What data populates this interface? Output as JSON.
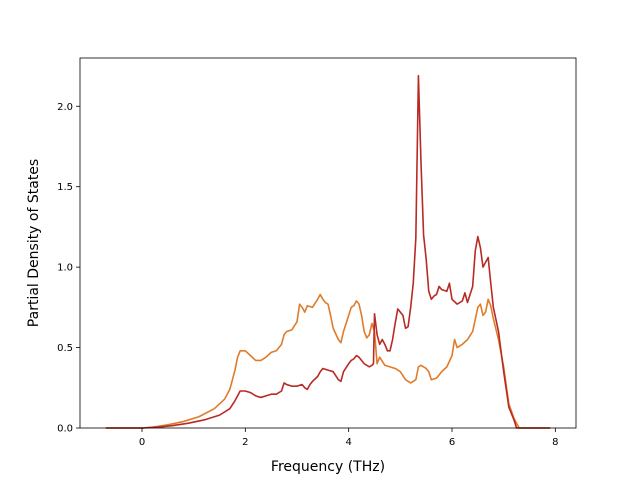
{
  "chart_data": {
    "type": "line",
    "title": "",
    "xlabel": "Frequency (THz)",
    "ylabel": "Partial Density of States",
    "xlim": [
      -1.2,
      8.4
    ],
    "ylim": [
      0.0,
      2.3
    ],
    "xticks": [
      0,
      2,
      4,
      6,
      8
    ],
    "yticks": [
      0.0,
      0.5,
      1.0,
      1.5,
      2.0
    ],
    "xtick_labels": [
      "0",
      "2",
      "4",
      "6",
      "8"
    ],
    "ytick_labels": [
      "0.0",
      "0.5",
      "1.0",
      "1.5",
      "2.0"
    ],
    "grid": false,
    "legend": "none",
    "series": [
      {
        "color": "#e07b2a",
        "points": [
          [
            -0.7,
            0.0
          ],
          [
            0.0,
            0.0
          ],
          [
            0.2,
            0.005
          ],
          [
            0.5,
            0.02
          ],
          [
            0.8,
            0.04
          ],
          [
            1.1,
            0.07
          ],
          [
            1.4,
            0.12
          ],
          [
            1.6,
            0.18
          ],
          [
            1.7,
            0.24
          ],
          [
            1.75,
            0.3
          ],
          [
            1.8,
            0.36
          ],
          [
            1.85,
            0.44
          ],
          [
            1.9,
            0.48
          ],
          [
            2.0,
            0.48
          ],
          [
            2.1,
            0.45
          ],
          [
            2.2,
            0.42
          ],
          [
            2.3,
            0.42
          ],
          [
            2.4,
            0.44
          ],
          [
            2.5,
            0.47
          ],
          [
            2.6,
            0.48
          ],
          [
            2.7,
            0.52
          ],
          [
            2.75,
            0.58
          ],
          [
            2.8,
            0.6
          ],
          [
            2.9,
            0.61
          ],
          [
            3.0,
            0.66
          ],
          [
            3.05,
            0.77
          ],
          [
            3.1,
            0.75
          ],
          [
            3.15,
            0.72
          ],
          [
            3.2,
            0.76
          ],
          [
            3.3,
            0.75
          ],
          [
            3.4,
            0.8
          ],
          [
            3.45,
            0.83
          ],
          [
            3.5,
            0.8
          ],
          [
            3.55,
            0.78
          ],
          [
            3.6,
            0.77
          ],
          [
            3.65,
            0.7
          ],
          [
            3.7,
            0.62
          ],
          [
            3.8,
            0.55
          ],
          [
            3.85,
            0.53
          ],
          [
            3.9,
            0.6
          ],
          [
            4.0,
            0.7
          ],
          [
            4.05,
            0.75
          ],
          [
            4.1,
            0.76
          ],
          [
            4.15,
            0.79
          ],
          [
            4.2,
            0.77
          ],
          [
            4.25,
            0.7
          ],
          [
            4.3,
            0.6
          ],
          [
            4.35,
            0.56
          ],
          [
            4.4,
            0.58
          ],
          [
            4.45,
            0.65
          ],
          [
            4.5,
            0.6
          ],
          [
            4.55,
            0.4
          ],
          [
            4.6,
            0.44
          ],
          [
            4.7,
            0.39
          ],
          [
            4.8,
            0.38
          ],
          [
            4.9,
            0.37
          ],
          [
            5.0,
            0.35
          ],
          [
            5.1,
            0.3
          ],
          [
            5.2,
            0.28
          ],
          [
            5.3,
            0.3
          ],
          [
            5.35,
            0.38
          ],
          [
            5.4,
            0.39
          ],
          [
            5.5,
            0.37
          ],
          [
            5.55,
            0.35
          ],
          [
            5.6,
            0.3
          ],
          [
            5.7,
            0.31
          ],
          [
            5.8,
            0.35
          ],
          [
            5.9,
            0.38
          ],
          [
            6.0,
            0.45
          ],
          [
            6.05,
            0.55
          ],
          [
            6.1,
            0.5
          ],
          [
            6.2,
            0.52
          ],
          [
            6.3,
            0.55
          ],
          [
            6.4,
            0.6
          ],
          [
            6.5,
            0.75
          ],
          [
            6.55,
            0.77
          ],
          [
            6.6,
            0.7
          ],
          [
            6.65,
            0.72
          ],
          [
            6.7,
            0.8
          ],
          [
            6.75,
            0.76
          ],
          [
            6.8,
            0.68
          ],
          [
            6.9,
            0.55
          ],
          [
            7.0,
            0.38
          ],
          [
            7.1,
            0.15
          ],
          [
            7.2,
            0.06
          ],
          [
            7.3,
            0.0
          ],
          [
            7.9,
            0.0
          ]
        ]
      },
      {
        "color": "#b82a24",
        "points": [
          [
            -0.7,
            0.0
          ],
          [
            0.0,
            0.0
          ],
          [
            0.3,
            0.005
          ],
          [
            0.6,
            0.015
          ],
          [
            0.9,
            0.03
          ],
          [
            1.2,
            0.05
          ],
          [
            1.5,
            0.08
          ],
          [
            1.7,
            0.12
          ],
          [
            1.8,
            0.17
          ],
          [
            1.85,
            0.2
          ],
          [
            1.9,
            0.23
          ],
          [
            2.0,
            0.23
          ],
          [
            2.1,
            0.22
          ],
          [
            2.2,
            0.2
          ],
          [
            2.3,
            0.19
          ],
          [
            2.4,
            0.2
          ],
          [
            2.5,
            0.21
          ],
          [
            2.6,
            0.21
          ],
          [
            2.7,
            0.23
          ],
          [
            2.75,
            0.28
          ],
          [
            2.8,
            0.27
          ],
          [
            2.9,
            0.26
          ],
          [
            3.0,
            0.26
          ],
          [
            3.1,
            0.27
          ],
          [
            3.15,
            0.25
          ],
          [
            3.2,
            0.24
          ],
          [
            3.25,
            0.27
          ],
          [
            3.3,
            0.29
          ],
          [
            3.4,
            0.32
          ],
          [
            3.45,
            0.35
          ],
          [
            3.5,
            0.37
          ],
          [
            3.6,
            0.36
          ],
          [
            3.7,
            0.35
          ],
          [
            3.8,
            0.3
          ],
          [
            3.85,
            0.29
          ],
          [
            3.9,
            0.35
          ],
          [
            4.0,
            0.4
          ],
          [
            4.05,
            0.42
          ],
          [
            4.1,
            0.43
          ],
          [
            4.15,
            0.45
          ],
          [
            4.2,
            0.44
          ],
          [
            4.3,
            0.4
          ],
          [
            4.4,
            0.38
          ],
          [
            4.45,
            0.39
          ],
          [
            4.48,
            0.4
          ],
          [
            4.5,
            0.71
          ],
          [
            4.55,
            0.58
          ],
          [
            4.6,
            0.52
          ],
          [
            4.65,
            0.55
          ],
          [
            4.7,
            0.52
          ],
          [
            4.75,
            0.48
          ],
          [
            4.8,
            0.48
          ],
          [
            4.85,
            0.55
          ],
          [
            4.9,
            0.65
          ],
          [
            4.95,
            0.74
          ],
          [
            5.0,
            0.72
          ],
          [
            5.05,
            0.7
          ],
          [
            5.1,
            0.62
          ],
          [
            5.15,
            0.63
          ],
          [
            5.2,
            0.75
          ],
          [
            5.25,
            0.9
          ],
          [
            5.3,
            1.18
          ],
          [
            5.35,
            2.19
          ],
          [
            5.4,
            1.65
          ],
          [
            5.45,
            1.2
          ],
          [
            5.5,
            1.05
          ],
          [
            5.55,
            0.85
          ],
          [
            5.6,
            0.8
          ],
          [
            5.65,
            0.82
          ],
          [
            5.7,
            0.83
          ],
          [
            5.75,
            0.88
          ],
          [
            5.8,
            0.86
          ],
          [
            5.9,
            0.85
          ],
          [
            5.95,
            0.9
          ],
          [
            6.0,
            0.8
          ],
          [
            6.1,
            0.77
          ],
          [
            6.2,
            0.79
          ],
          [
            6.25,
            0.84
          ],
          [
            6.3,
            0.78
          ],
          [
            6.4,
            0.88
          ],
          [
            6.45,
            1.1
          ],
          [
            6.5,
            1.19
          ],
          [
            6.55,
            1.12
          ],
          [
            6.6,
            1.0
          ],
          [
            6.65,
            1.03
          ],
          [
            6.7,
            1.06
          ],
          [
            6.75,
            0.9
          ],
          [
            6.8,
            0.75
          ],
          [
            6.9,
            0.6
          ],
          [
            7.0,
            0.35
          ],
          [
            7.1,
            0.13
          ],
          [
            7.2,
            0.05
          ],
          [
            7.25,
            0.0
          ],
          [
            7.9,
            0.0
          ]
        ]
      }
    ]
  }
}
